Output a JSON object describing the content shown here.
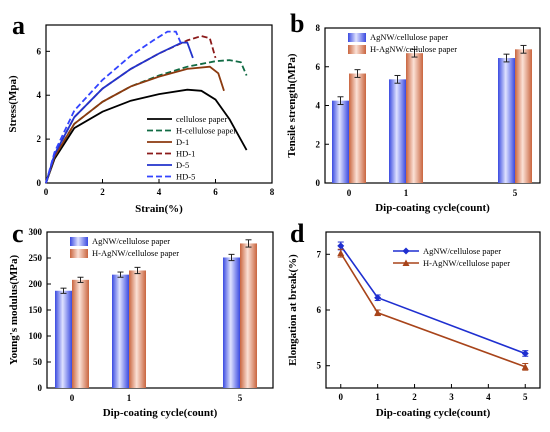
{
  "chart_data": [
    {
      "panel": "a",
      "type": "line",
      "xlabel": "Strain(%)",
      "ylabel": "Stress(Mpa)",
      "xlim": [
        0,
        8
      ],
      "ylim": [
        0,
        7.2
      ],
      "xticks": [
        0,
        2,
        4,
        6,
        8
      ],
      "yticks": [
        0,
        2,
        4,
        6
      ],
      "legend_position": "bottom-right",
      "series": [
        {
          "name": "cellulose paper",
          "color": "#000000",
          "dash": "solid",
          "x": [
            0,
            0.3,
            1,
            2,
            3,
            4,
            5,
            5.5,
            6,
            6.5,
            7.1
          ],
          "y": [
            0,
            1.1,
            2.5,
            3.25,
            3.75,
            4.05,
            4.25,
            4.2,
            3.8,
            2.9,
            1.5
          ]
        },
        {
          "name": "H-cellulose paper",
          "color": "#116b44",
          "dash": "dash",
          "x": [
            0,
            0.3,
            1,
            2,
            3,
            4,
            5,
            6,
            6.5,
            6.9,
            7.1
          ],
          "y": [
            0,
            1.2,
            2.7,
            3.7,
            4.4,
            4.9,
            5.3,
            5.55,
            5.6,
            5.5,
            4.9
          ]
        },
        {
          "name": "D-1",
          "color": "#8b3a0f",
          "dash": "solid",
          "x": [
            0,
            0.3,
            1,
            2,
            3,
            4,
            5,
            5.8,
            6.1,
            6.3
          ],
          "y": [
            0,
            1.2,
            2.7,
            3.7,
            4.4,
            4.85,
            5.2,
            5.3,
            5.0,
            4.2
          ]
        },
        {
          "name": "HD-1",
          "color": "#8b1a1a",
          "dash": "dash",
          "x": [
            0,
            0.3,
            1,
            2,
            3,
            4,
            5,
            5.5,
            5.8,
            6.0
          ],
          "y": [
            0,
            1.3,
            3.0,
            4.3,
            5.2,
            5.9,
            6.5,
            6.7,
            6.6,
            5.7
          ]
        },
        {
          "name": "D-5",
          "color": "#2233cc",
          "dash": "solid",
          "x": [
            0,
            0.3,
            1,
            2,
            3,
            4,
            4.8,
            5.0,
            5.2
          ],
          "y": [
            0,
            1.3,
            3.0,
            4.3,
            5.2,
            5.9,
            6.4,
            6.4,
            5.7
          ]
        },
        {
          "name": "HD-5",
          "color": "#3344ff",
          "dash": "dash",
          "x": [
            0,
            0.3,
            1,
            2,
            3,
            3.8,
            4.3,
            4.6,
            4.8
          ],
          "y": [
            0,
            1.4,
            3.3,
            4.7,
            5.8,
            6.5,
            6.9,
            6.9,
            6.3
          ]
        }
      ]
    },
    {
      "panel": "b",
      "type": "bar",
      "xlabel": "Dip-coating cycle(count)",
      "ylabel": "Tensile strength(MPa)",
      "categories": [
        "0",
        "1",
        "5"
      ],
      "ylim": [
        0,
        8
      ],
      "yticks": [
        0,
        2,
        4,
        6,
        8
      ],
      "legend_position": "top-left",
      "series": [
        {
          "name": "AgNW/cellulose paper",
          "color": "#5566ee",
          "values": [
            4.25,
            5.35,
            6.45
          ],
          "errors": [
            0.2,
            0.2,
            0.2
          ]
        },
        {
          "name": "H-AgNW/cellulose paper",
          "color": "#dd8866",
          "values": [
            5.65,
            6.7,
            6.9
          ],
          "errors": [
            0.2,
            0.2,
            0.2
          ]
        }
      ]
    },
    {
      "panel": "c",
      "type": "bar",
      "xlabel": "Dip-coating cycle(count)",
      "ylabel": "Young's modulus(MPa)",
      "categories": [
        "0",
        "1",
        "5"
      ],
      "ylim": [
        0,
        300
      ],
      "yticks": [
        0,
        50,
        100,
        150,
        200,
        250,
        300
      ],
      "legend_position": "top-left",
      "series": [
        {
          "name": "AgNW/cellulose paper",
          "color": "#5566ee",
          "values": [
            187,
            218,
            251
          ],
          "errors": [
            5,
            5,
            6
          ]
        },
        {
          "name": "H-AgNW/cellulose paper",
          "color": "#dd8866",
          "values": [
            208,
            226,
            278
          ],
          "errors": [
            5,
            6,
            7
          ]
        }
      ]
    },
    {
      "panel": "d",
      "type": "line",
      "xlabel": "Dip-coating cycle(count)",
      "ylabel": "Elongation at break(%)",
      "x": [
        0,
        1,
        5
      ],
      "xlim": [
        -0.4,
        5.4
      ],
      "ylim": [
        4.6,
        7.4
      ],
      "xticks": [
        0,
        1,
        2,
        3,
        4,
        5
      ],
      "yticks": [
        5,
        6,
        7
      ],
      "legend_position": "top-right",
      "series": [
        {
          "name": "AgNW/cellulose paper",
          "color": "#1f2fd0",
          "marker": "diamond",
          "values": [
            7.15,
            6.22,
            5.22
          ],
          "errors": [
            0.07,
            0.05,
            0.05
          ]
        },
        {
          "name": "H-AgNW/cellulose paper",
          "color": "#a8441a",
          "marker": "triangle",
          "values": [
            7.02,
            5.95,
            4.98
          ],
          "errors": [
            0.07,
            0.05,
            0.06
          ]
        }
      ]
    }
  ]
}
